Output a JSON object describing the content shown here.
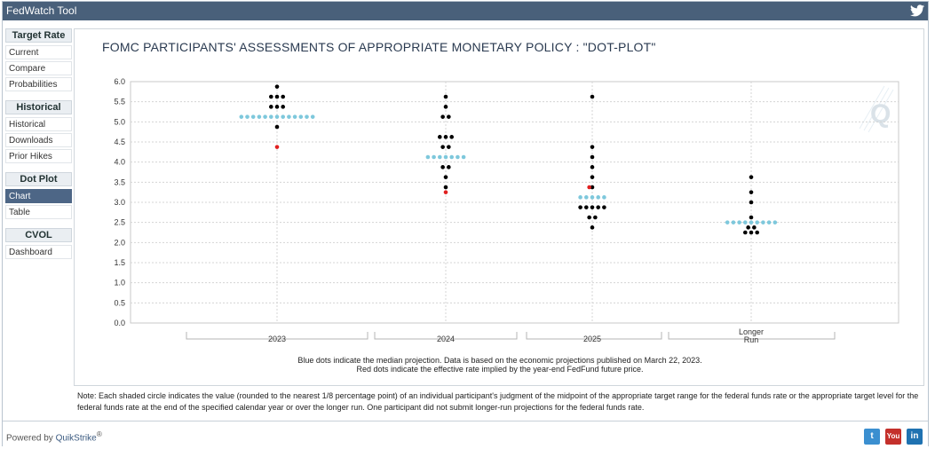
{
  "app": {
    "title": "FedWatch Tool"
  },
  "sidebar": {
    "sections": [
      {
        "header": "Target Rate",
        "items": [
          "Current",
          "Compare",
          "Probabilities"
        ]
      },
      {
        "header": "Historical",
        "items": [
          "Historical",
          "Downloads",
          "Prior Hikes"
        ]
      },
      {
        "header": "Dot Plot",
        "items": [
          "Chart",
          "Table"
        ],
        "active": "Chart"
      },
      {
        "header": "CVOL",
        "items": [
          "Dashboard"
        ]
      }
    ]
  },
  "chart_data": {
    "type": "scatter",
    "title": "FOMC PARTICIPANTS' ASSESSMENTS OF APPROPRIATE MONETARY POLICY : \"DOT-PLOT\"",
    "categories": [
      "2023",
      "2024",
      "2025",
      "Longer Run"
    ],
    "category_label_lines": [
      [
        "2023"
      ],
      [
        "2024"
      ],
      [
        "2025"
      ],
      [
        "Longer",
        "Run"
      ]
    ],
    "ylim": [
      0,
      6
    ],
    "yticks": [
      "0.0",
      "0.5",
      "1.0",
      "1.5",
      "2.0",
      "2.5",
      "3.0",
      "3.5",
      "4.0",
      "4.5",
      "5.0",
      "5.5",
      "6.0"
    ],
    "grid": true,
    "colors": {
      "participant": "#000000",
      "median": "#7ec8dc",
      "implied": "#e02020"
    },
    "participant_dots": [
      {
        "category": "2023",
        "rates": [
          5.875,
          5.625,
          5.625,
          5.625,
          5.375,
          5.375,
          5.375,
          4.875
        ]
      },
      {
        "category": "2024",
        "rates": [
          5.625,
          5.375,
          5.125,
          5.125,
          4.625,
          4.625,
          4.625,
          4.375,
          4.375,
          3.875,
          3.875,
          3.625,
          3.375
        ]
      },
      {
        "category": "2025",
        "rates": [
          5.625,
          4.375,
          4.125,
          3.875,
          3.625,
          3.375,
          2.875,
          2.875,
          2.875,
          2.875,
          2.875,
          2.625,
          2.625,
          2.375
        ]
      },
      {
        "category": "Longer Run",
        "rates": [
          3.625,
          3.25,
          3.0,
          2.625,
          2.375,
          2.375,
          2.25,
          2.25,
          2.25
        ]
      }
    ],
    "median_dots": [
      {
        "category": "2023",
        "rate": 5.125,
        "count": 13
      },
      {
        "category": "2024",
        "rate": 4.125,
        "count": 7
      },
      {
        "category": "2025",
        "rate": 3.125,
        "count": 5
      },
      {
        "category": "Longer Run",
        "rate": 2.5,
        "count": 9
      }
    ],
    "implied_dots": [
      {
        "category": "2023",
        "rate": 4.375
      },
      {
        "category": "2024",
        "rate": 3.25
      },
      {
        "category": "2025",
        "rate": 3.375
      }
    ]
  },
  "captions": {
    "line1": "Blue dots indicate the median projection. Data is based on the economic projections published on March 22, 2023.",
    "line2": "Red dots indicate the effective rate implied by the year-end FedFund future price."
  },
  "note": "Note: Each shaded circle indicates the value (rounded to the nearest 1/8 percentage point) of an individual participant's judgment of the midpoint of the appropriate target range for the federal funds rate or the appropriate target level for the federal funds rate at the end of the specified calendar year or over the longer run. One participant did not submit longer-run projections for the federal funds rate.",
  "footer": {
    "powered_by": "Powered by",
    "brand": "QuikStrike",
    "reg": "®"
  },
  "social": [
    {
      "name": "twitter",
      "label": "t",
      "color": "#3b8fd0"
    },
    {
      "name": "youtube",
      "label": "You",
      "color": "#c4302b"
    },
    {
      "name": "linkedin",
      "label": "in",
      "color": "#1f72b1"
    }
  ]
}
